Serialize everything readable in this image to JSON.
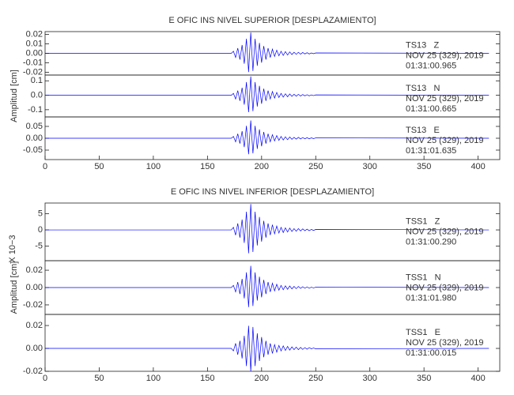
{
  "chart_data": [
    {
      "type": "line",
      "title": "E OFIC INS NIVEL SUPERIOR [DESPLAZAMIENTO]",
      "station": "TS13   Z",
      "date": "NOV 25 (329), 2019",
      "time": "01:31:00.965",
      "color": "#0000ff",
      "xlim": [
        0,
        420
      ],
      "ylim": [
        -0.023,
        0.023
      ],
      "yticks": [
        0.02,
        0.01,
        {
          "value": 0,
          "label": "0.00"
        },
        -0.01,
        -0.02
      ],
      "x": [
        0,
        172,
        174,
        176,
        178,
        180,
        182,
        184,
        186,
        188,
        190,
        192,
        194,
        196,
        198,
        200,
        202,
        204,
        206,
        208,
        210,
        212,
        214,
        216,
        218,
        220,
        222,
        224,
        226,
        228,
        230,
        232,
        234,
        236,
        238,
        240,
        242,
        244,
        246,
        248,
        250,
        410
      ],
      "values": [
        0,
        0,
        0.0022,
        -0.0044,
        0.0055,
        -0.0066,
        0.0088,
        -0.011,
        0.0154,
        -0.0198,
        0.022,
        -0.0187,
        0.0154,
        -0.0132,
        0.011,
        -0.0099,
        0.0077,
        -0.0066,
        0.0055,
        -0.0044,
        0.0044,
        -0.0033,
        0.0033,
        -0.0026,
        0.0022,
        -0.0022,
        0.0018,
        -0.0018,
        0.0015,
        -0.0013,
        0.0011,
        -0.0011,
        0.0011,
        -0.0009,
        0.0009,
        -0.0007,
        0.0007,
        -0.0007,
        0.0004,
        -0.0004,
        0.0004,
        0
      ]
    },
    {
      "type": "line",
      "ylabel": "Amplitud [cm]",
      "station": "TS13   N",
      "date": "NOV 25 (329), 2019",
      "time": "01:31:00.665",
      "color": "#0000ff",
      "xlim": [
        0,
        420
      ],
      "ylim": [
        -0.15,
        0.14
      ],
      "yticks": [
        0.1,
        {
          "value": 0,
          "label": "0.0"
        },
        -0.1
      ],
      "x": [
        0,
        172,
        174,
        176,
        178,
        180,
        182,
        184,
        186,
        188,
        190,
        192,
        194,
        196,
        198,
        200,
        202,
        204,
        206,
        208,
        210,
        212,
        214,
        216,
        218,
        220,
        222,
        224,
        226,
        228,
        230,
        232,
        234,
        236,
        238,
        240,
        242,
        244,
        246,
        248,
        250,
        410
      ],
      "values": [
        0,
        0,
        0.013,
        -0.026,
        0.0325,
        -0.039,
        0.052,
        -0.065,
        0.091,
        -0.117,
        0.13,
        -0.1105,
        0.091,
        -0.078,
        0.065,
        -0.0585,
        0.0455,
        -0.039,
        0.0325,
        -0.026,
        0.026,
        -0.0195,
        0.0195,
        -0.0156,
        0.013,
        -0.013,
        0.0104,
        -0.0104,
        0.0091,
        -0.0078,
        0.0065,
        -0.0065,
        0.0065,
        -0.0052,
        0.0052,
        -0.0039,
        0.0039,
        -0.0039,
        0.0026,
        -0.0026,
        0.0026,
        0
      ]
    },
    {
      "type": "line",
      "station": "TS13   E",
      "date": "NOV 25 (329), 2019",
      "time": "01:31:01.635",
      "color": "#0000ff",
      "xlim": [
        0,
        420
      ],
      "ylim": [
        -0.09,
        0.09
      ],
      "yticks": [
        0.05,
        {
          "value": 0,
          "label": "0.00"
        },
        -0.05
      ],
      "xticks": [
        0,
        50,
        100,
        150,
        200,
        250,
        300,
        350,
        400
      ],
      "x": [
        0,
        172,
        174,
        176,
        178,
        180,
        182,
        184,
        186,
        188,
        190,
        192,
        194,
        196,
        198,
        200,
        202,
        204,
        206,
        208,
        210,
        212,
        214,
        216,
        218,
        220,
        222,
        224,
        226,
        228,
        230,
        232,
        234,
        236,
        238,
        240,
        242,
        244,
        246,
        248,
        250,
        410
      ],
      "values": [
        0,
        0,
        0.0075,
        -0.015,
        0.0188,
        -0.0225,
        0.03,
        -0.0375,
        0.0525,
        -0.0675,
        0.075,
        -0.0638,
        0.0525,
        -0.045,
        0.0375,
        -0.0338,
        0.0263,
        -0.0225,
        0.0188,
        -0.015,
        0.015,
        -0.0113,
        0.0113,
        -0.009,
        0.0075,
        -0.0075,
        0.006,
        -0.006,
        0.0053,
        -0.0045,
        0.0038,
        -0.0038,
        0.0038,
        -0.003,
        0.003,
        -0.0023,
        0.0023,
        -0.0023,
        0.0015,
        -0.0015,
        0.0015,
        0
      ]
    },
    {
      "type": "line",
      "title": "E OFIC INS NIVEL INFERIOR [DESPLAZAMIENTO]",
      "ymultiplier": "X 10−3",
      "station": "TSS1   Z",
      "date": "NOV 25 (329), 2019",
      "time": "01:31:00.290",
      "color": "#0000ff",
      "xlim": [
        0,
        420
      ],
      "ylim": [
        -9.5,
        8.3
      ],
      "yticks": [
        5,
        0,
        -5
      ],
      "x": [
        0,
        172,
        174,
        176,
        178,
        180,
        182,
        184,
        186,
        188,
        190,
        192,
        194,
        196,
        198,
        200,
        202,
        204,
        206,
        208,
        210,
        212,
        214,
        216,
        218,
        220,
        222,
        224,
        226,
        228,
        230,
        232,
        234,
        236,
        238,
        240,
        242,
        244,
        246,
        248,
        250,
        410
      ],
      "values": [
        0,
        0,
        0.8,
        -1.6,
        2,
        -2.4,
        3.2,
        -4,
        5.6,
        -7.2,
        8,
        -6.8,
        5.6,
        -4.8,
        4,
        -3.6,
        2.8,
        -2.4,
        2,
        -1.6,
        1.6,
        -1.2,
        1.2,
        -0.96,
        0.8,
        -0.8,
        0.64,
        -0.64,
        0.56,
        -0.48,
        0.4,
        -0.4,
        0.4,
        -0.32,
        0.32,
        -0.24,
        0.24,
        -0.24,
        0.16,
        -0.16,
        0.16,
        0
      ]
    },
    {
      "type": "line",
      "ylabel": "Amplitud [cm]",
      "station": "TSS1   N",
      "date": "NOV 25 (329), 2019",
      "time": "01:31:01.980",
      "color": "#0000ff",
      "xlim": [
        0,
        420
      ],
      "ylim": [
        -0.031,
        0.031
      ],
      "yticks": [
        0.02,
        {
          "value": 0,
          "label": "0.00"
        },
        -0.02
      ],
      "x": [
        0,
        172,
        174,
        176,
        178,
        180,
        182,
        184,
        186,
        188,
        190,
        192,
        194,
        196,
        198,
        200,
        202,
        204,
        206,
        208,
        210,
        212,
        214,
        216,
        218,
        220,
        222,
        224,
        226,
        228,
        230,
        232,
        234,
        236,
        238,
        240,
        242,
        244,
        246,
        248,
        250,
        410
      ],
      "values": [
        0,
        0,
        0.0025,
        -0.005,
        0.0063,
        -0.0075,
        0.01,
        -0.0125,
        0.0175,
        -0.0225,
        0.025,
        -0.0213,
        0.0175,
        -0.015,
        0.0125,
        -0.0113,
        0.0088,
        -0.0075,
        0.0063,
        -0.005,
        0.005,
        -0.0038,
        0.0038,
        -0.003,
        0.0025,
        -0.0025,
        0.002,
        -0.002,
        0.0018,
        -0.0015,
        0.0013,
        -0.0013,
        0.0013,
        -0.001,
        0.001,
        -0.0008,
        0.0008,
        -0.0008,
        0.0005,
        -0.0005,
        0.0005,
        0
      ]
    },
    {
      "type": "line",
      "station": "TSS1   E",
      "date": "NOV 25 (329), 2019",
      "time": "01:31:00.015",
      "color": "#0000ff",
      "xlim": [
        0,
        420
      ],
      "ylim": [
        -0.02,
        0.0297
      ],
      "yticks": [
        0.02,
        {
          "value": 0,
          "label": "0.00"
        },
        -0.02
      ],
      "xticks": [
        0,
        50,
        100,
        150,
        200,
        250,
        300,
        350,
        400
      ],
      "x": [
        0,
        172,
        174,
        176,
        178,
        180,
        182,
        184,
        186,
        188,
        190,
        192,
        194,
        196,
        198,
        200,
        202,
        204,
        206,
        208,
        210,
        212,
        214,
        216,
        218,
        220,
        222,
        224,
        226,
        228,
        230,
        232,
        234,
        236,
        238,
        240,
        242,
        244,
        246,
        248,
        250,
        410
      ],
      "values": [
        0,
        0,
        -0.0022,
        0.0044,
        -0.0055,
        0.0066,
        -0.0088,
        0.011,
        -0.0154,
        0.0198,
        -0.02,
        0.0187,
        -0.0154,
        0.0132,
        -0.011,
        0.0099,
        -0.0077,
        0.0066,
        -0.0055,
        0.0044,
        -0.0044,
        0.0033,
        -0.0033,
        0.0026,
        -0.0022,
        0.0022,
        -0.0018,
        0.0018,
        -0.0015,
        0.0013,
        -0.0011,
        0.0011,
        -0.0011,
        0.0009,
        -0.0009,
        0.0007,
        -0.0007,
        0.0007,
        -0.0004,
        0.0004,
        -0.0004,
        0
      ]
    }
  ]
}
